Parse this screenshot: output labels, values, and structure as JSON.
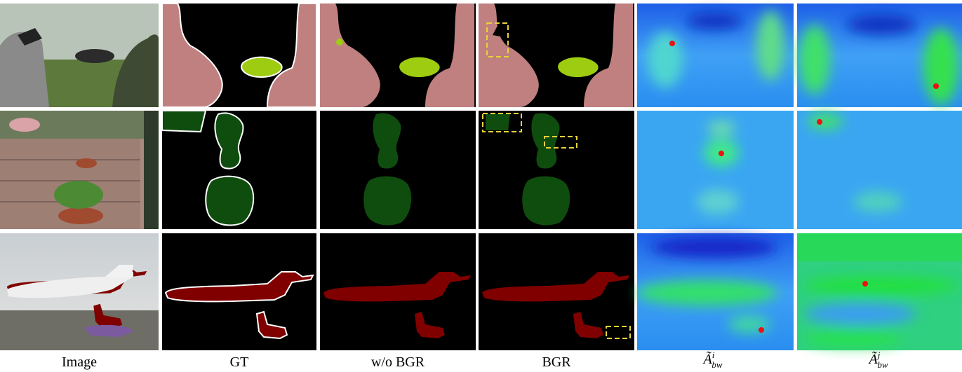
{
  "columns": [
    {
      "label": "Image"
    },
    {
      "label": "GT"
    },
    {
      "label": "w/o BGR"
    },
    {
      "label": "BGR"
    },
    {
      "label": {
        "base": "Ã",
        "sup": "i",
        "sub": "bw"
      }
    },
    {
      "label": {
        "base": "Ã",
        "sup": "j",
        "sub": "bw"
      }
    }
  ]
}
